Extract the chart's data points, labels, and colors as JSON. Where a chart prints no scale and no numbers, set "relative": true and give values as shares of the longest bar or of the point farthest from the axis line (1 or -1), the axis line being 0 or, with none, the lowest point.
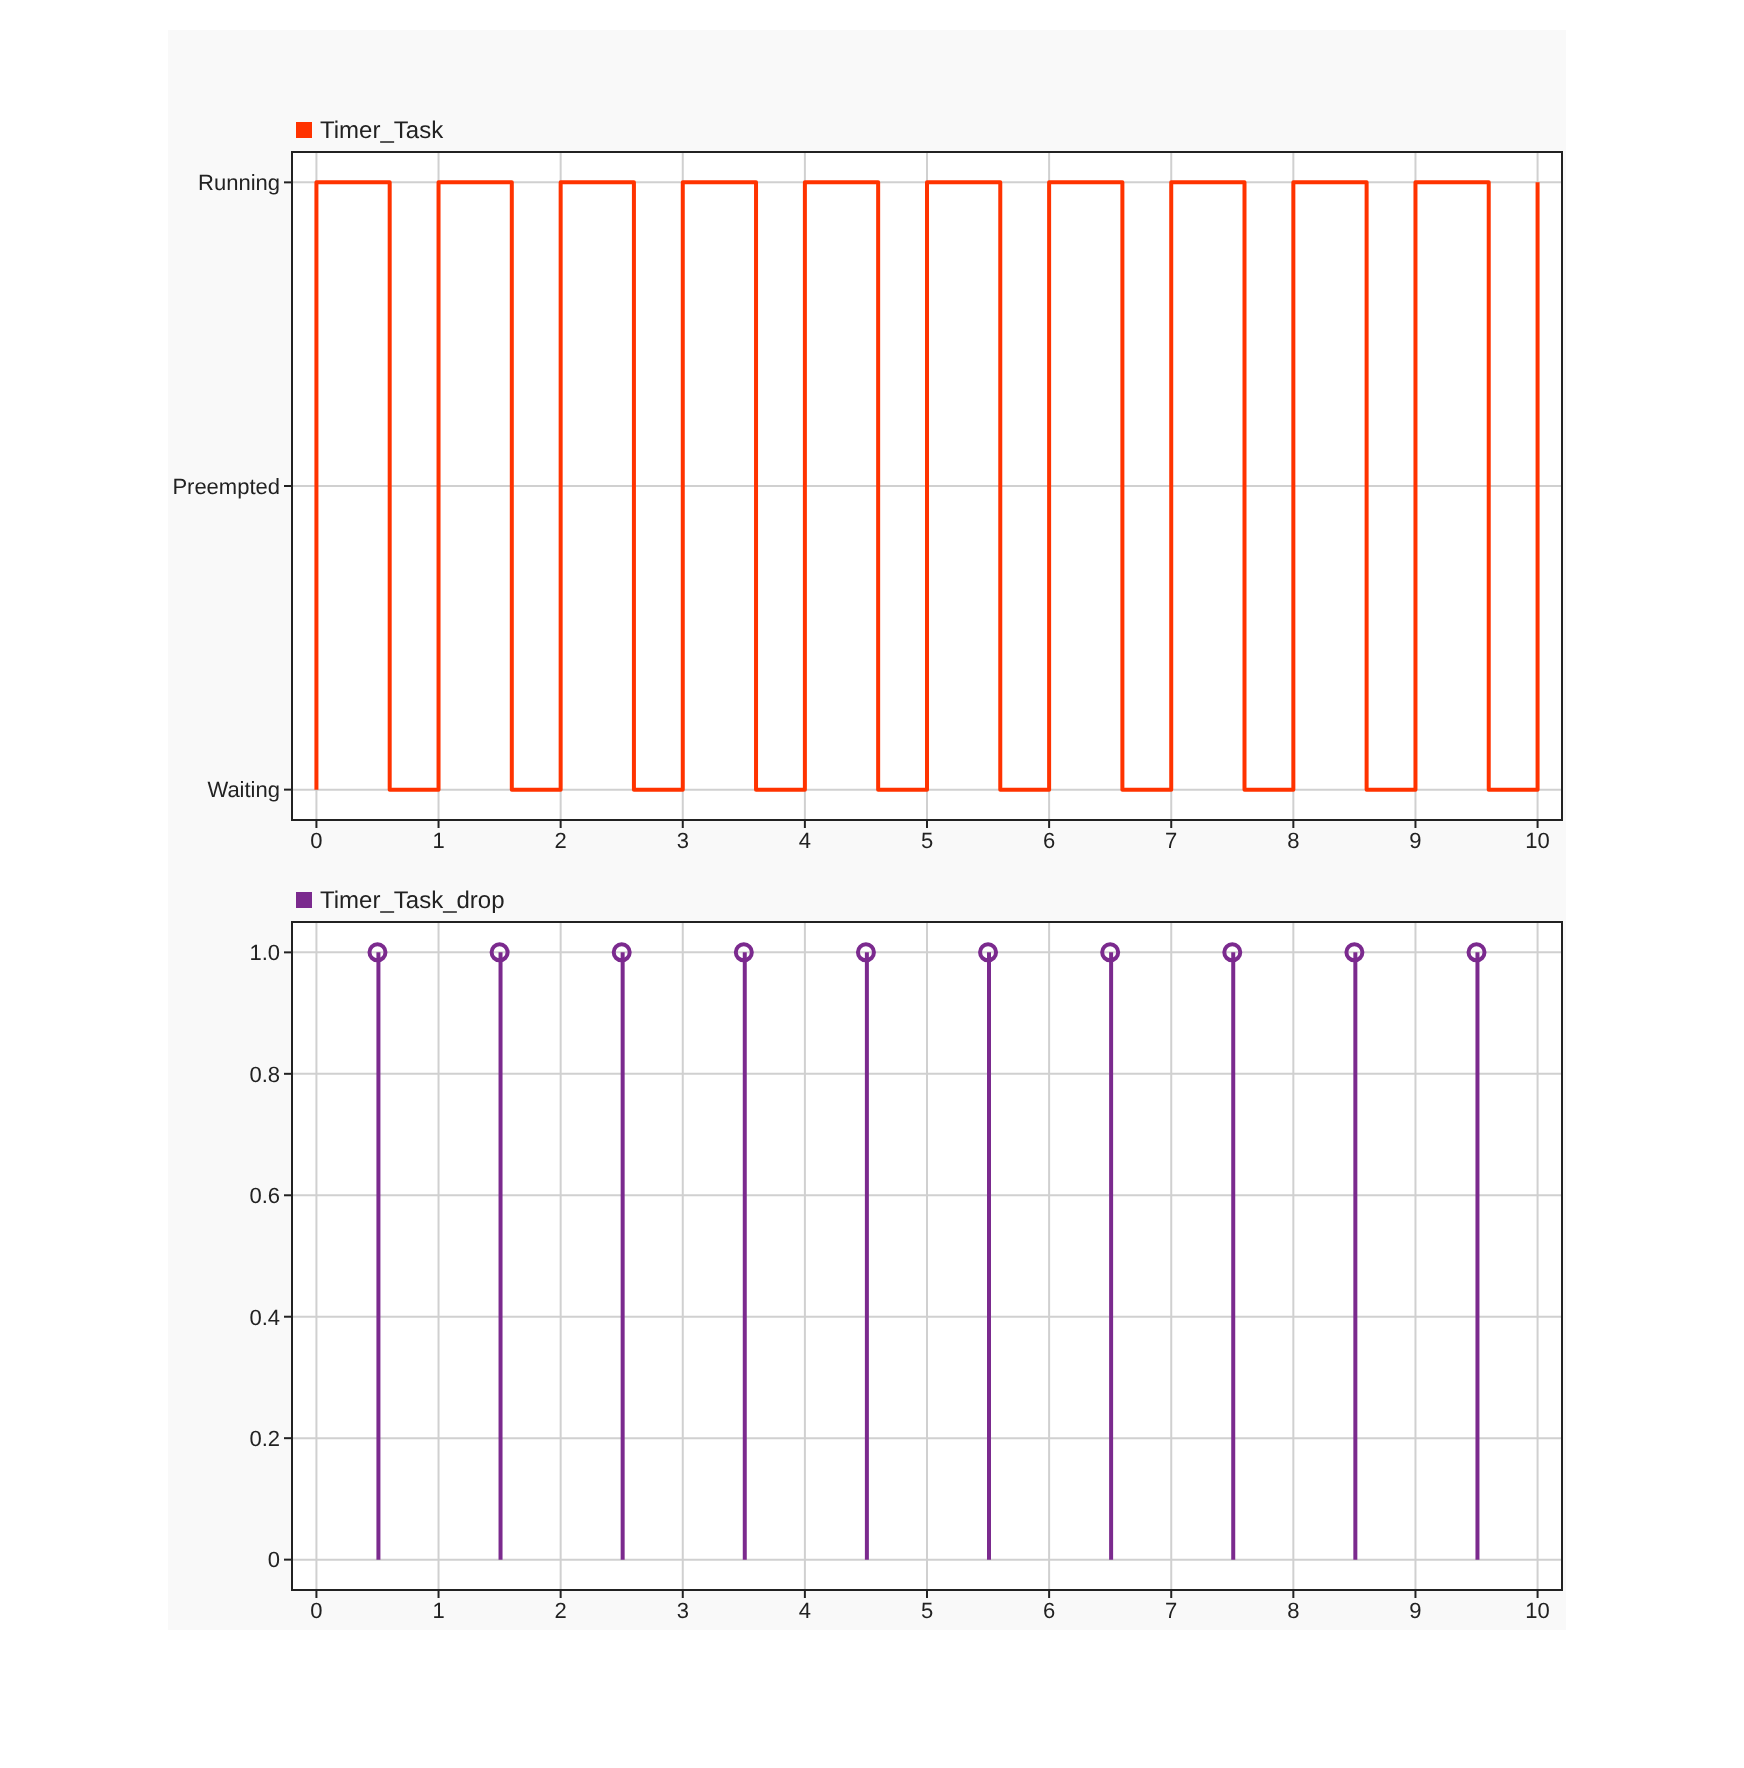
{
  "chart_data": [
    {
      "type": "step",
      "x": [
        0,
        0,
        0.6,
        1,
        1.6,
        2,
        2.6,
        3,
        3.6,
        4,
        4.6,
        5,
        5.6,
        6,
        6.6,
        7,
        7.6,
        8,
        8.6,
        9,
        9.6,
        10
      ],
      "relative": true,
      "y_categories": [
        "Running",
        "Preempted",
        "Waiting"
      ],
      "series": [
        {
          "name": "Timer_Task",
          "color": "#ff3300",
          "values": [
            0,
            1,
            0,
            1,
            0,
            1,
            0,
            1,
            0,
            1,
            0,
            1,
            0,
            1,
            0,
            1,
            0,
            1,
            0,
            1,
            0,
            1
          ]
        }
      ],
      "xlim": [
        -0.2,
        10.2
      ],
      "xticks": [
        0,
        1,
        2,
        3,
        4,
        5,
        6,
        7,
        8,
        9,
        10
      ],
      "grid": true,
      "legend": "top left"
    },
    {
      "type": "lollipop",
      "x": [
        0.5,
        1.5,
        2.5,
        3.5,
        4.5,
        5.5,
        6.5,
        7.5,
        8.5,
        9.5
      ],
      "series": [
        {
          "name": "Timer_Task_drop",
          "color": "#7b2a8e",
          "values": [
            1,
            1,
            1,
            1,
            1,
            1,
            1,
            1,
            1,
            1
          ]
        }
      ],
      "xlim": [
        -0.2,
        10.2
      ],
      "xticks": [
        0,
        1,
        2,
        3,
        4,
        5,
        6,
        7,
        8,
        9,
        10
      ],
      "ylim": [
        -0.05,
        1.05
      ],
      "yticks": [
        0,
        {
          "value": 0.2,
          "label": "0.2"
        },
        {
          "value": 0.4,
          "label": "0.4"
        },
        {
          "value": 0.6,
          "label": "0.6"
        },
        {
          "value": 0.8,
          "label": "0.8"
        },
        {
          "value": 1,
          "label": "1.0"
        }
      ],
      "grid": true,
      "legend": "top left",
      "marker": "circle"
    }
  ]
}
